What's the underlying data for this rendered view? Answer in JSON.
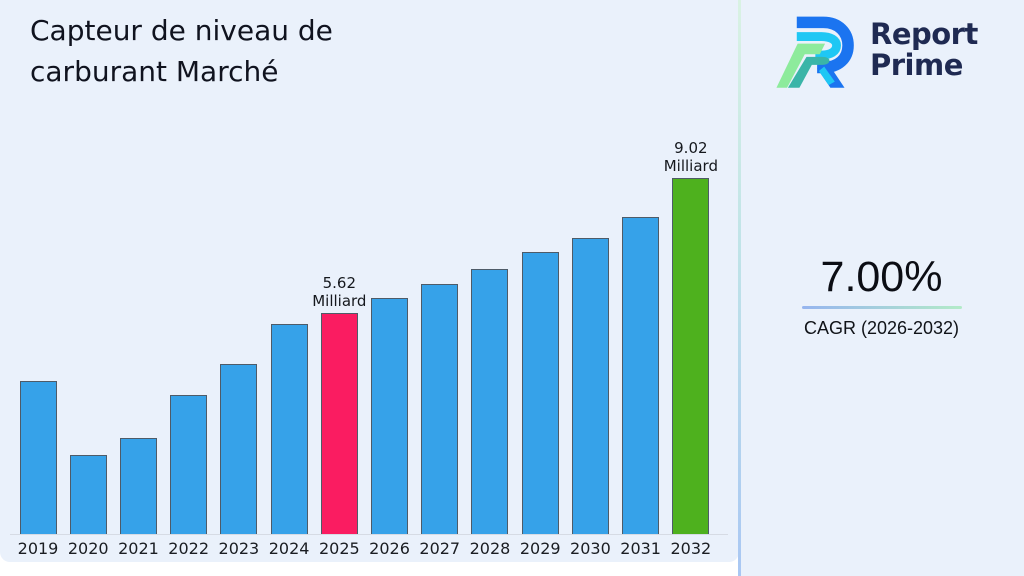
{
  "page": {
    "title": "Capteur de niveau de carburant Marché"
  },
  "logo": {
    "brand_line1": "Report",
    "brand_line2": "Prime",
    "colors": {
      "navy": "#1F2A52",
      "blue": "#1B74F0",
      "cyan": "#1FC7F4",
      "green": "#8DEB9C",
      "teal": "#3AB5A8"
    }
  },
  "stats": {
    "cagr_value": "7.00%",
    "cagr_label": "CAGR (2026-2032)"
  },
  "chart_data": {
    "type": "bar",
    "title": "Capteur de niveau de carburant Marché",
    "categories": [
      "2019",
      "2020",
      "2021",
      "2022",
      "2023",
      "2024",
      "2025",
      "2026",
      "2027",
      "2028",
      "2029",
      "2030",
      "2031",
      "2032"
    ],
    "values": [
      3.9,
      2.01,
      2.46,
      3.54,
      4.32,
      5.33,
      5.62,
      5.98,
      6.33,
      6.71,
      7.14,
      7.51,
      8.04,
      9.02
    ],
    "unit": "Milliard",
    "ylim": [
      0,
      9.5
    ],
    "grid": false,
    "legend": false,
    "xlabel": "",
    "ylabel": "",
    "bar_color_default": "#36A2E9",
    "bar_border_color": "#4E5B68",
    "highlight_bars": {
      "2025": "#FA1C61",
      "2032": "#4EB11E"
    },
    "data_labels": {
      "2025": [
        "5.62",
        "Milliard"
      ],
      "2032": [
        "9.02",
        "Milliard"
      ]
    },
    "background_color": "#EAF1FB"
  }
}
